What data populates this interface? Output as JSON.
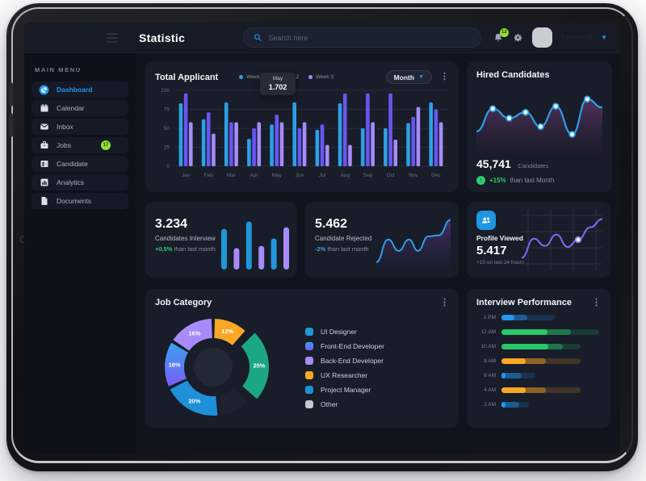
{
  "topbar": {
    "title": "Statistic",
    "search_placeholder": "Search here",
    "notification_count": "12",
    "user_name": "Fandom M"
  },
  "sidebar": {
    "section_label": "MAIN MENU",
    "items": [
      {
        "label": "Dashboard",
        "icon": "dashboard-icon",
        "active": true
      },
      {
        "label": "Calendar",
        "icon": "calendar-icon",
        "active": false
      },
      {
        "label": "Inbox",
        "icon": "inbox-icon",
        "active": false
      },
      {
        "label": "Jobs",
        "icon": "jobs-icon",
        "active": false,
        "badge": "17"
      },
      {
        "label": "Candidate",
        "icon": "candidate-icon",
        "active": false
      },
      {
        "label": "Analytics",
        "icon": "analytics-icon",
        "active": false
      },
      {
        "label": "Documents",
        "icon": "documents-icon",
        "active": false
      }
    ]
  },
  "cards": {
    "total_applicant": {
      "title": "Total Applicant",
      "period": "Month"
    },
    "hired": {
      "title": "Hired Candidates",
      "value": "45,741",
      "unit": "Candidates",
      "delta": "+15%",
      "delta_suffix": "than last Month"
    },
    "interview": {
      "value": "3.234",
      "label": "Candidates Interview",
      "delta": "+0,5%",
      "delta_suffix": "than last month"
    },
    "rejected": {
      "value": "5.462",
      "label": "Candidate Rejected",
      "delta": "-2%",
      "delta_suffix": "than last month"
    },
    "profile": {
      "title": "Profile Viewed",
      "value": "5.417",
      "delta": "+15 on last 24 hours"
    },
    "job_category": {
      "title": "Job Category"
    },
    "interview_performance": {
      "title": "Interview Performance"
    }
  },
  "colors": {
    "accent": "#2196f3",
    "week1": "#2e9fe6",
    "week2": "#6757f2",
    "week3": "#a78bfa",
    "green": "#2ecc71",
    "lime_badge": "#93e232",
    "orange": "#f9a825",
    "teal": "#1ba784",
    "purple_line": "#7c6cf5",
    "card_bg": "#181d29",
    "screen_bg": "#10141d"
  },
  "chart_data": [
    {
      "id": "total-applicant",
      "type": "bar",
      "title": "Total Applicant",
      "categories": [
        "Jan",
        "Feb",
        "Mar",
        "Apr",
        "May",
        "Jun",
        "Jul",
        "Aug",
        "Sep",
        "Oct",
        "Nov",
        "Dec"
      ],
      "series": [
        {
          "name": "Week 1",
          "color": "#2e9fe6",
          "values": [
            83,
            62,
            84,
            36,
            55,
            84,
            48,
            83,
            50,
            50,
            57,
            84
          ]
        },
        {
          "name": "Week 2",
          "color": "#6757f2",
          "values": [
            96,
            71,
            58,
            50,
            68,
            50,
            55,
            96,
            96,
            96,
            65,
            75
          ]
        },
        {
          "name": "Week 3",
          "color": "#a78bfa",
          "values": [
            58,
            43,
            58,
            58,
            58,
            58,
            28,
            28,
            58,
            35,
            78,
            58
          ]
        }
      ],
      "ylim": [
        0,
        100
      ],
      "yticks": [
        0,
        25,
        50,
        75,
        100
      ],
      "grid": true,
      "legend_position": "top",
      "tooltip": {
        "category": "May",
        "value": "1.702"
      }
    },
    {
      "id": "hired-candidates",
      "type": "line",
      "x": [
        0,
        13,
        26,
        39,
        51,
        63,
        76,
        88,
        100
      ],
      "values": [
        30,
        68,
        52,
        62,
        38,
        72,
        25,
        84,
        70
      ],
      "marker_indexes": [
        1,
        2,
        3,
        4,
        5,
        6,
        7
      ],
      "line_color": "#2e9fe6",
      "area": true
    },
    {
      "id": "candidates-interview",
      "type": "bar",
      "values": [
        72,
        38,
        85,
        42,
        55,
        75
      ],
      "colors": [
        "#2196d9",
        "#a78bfa",
        "#2196d9",
        "#a78bfa",
        "#2196d9",
        "#a78bfa"
      ]
    },
    {
      "id": "candidate-rejected",
      "type": "area",
      "x": [
        0,
        16,
        30,
        44,
        56,
        70,
        84,
        100
      ],
      "values": [
        8,
        52,
        30,
        52,
        30,
        58,
        60,
        90
      ],
      "line_color": "#2e9fe6"
    },
    {
      "id": "profile-viewed",
      "type": "line",
      "x": [
        0,
        15,
        29,
        43,
        57,
        70,
        85,
        100
      ],
      "values": [
        15,
        52,
        38,
        60,
        36,
        50,
        74,
        90
      ],
      "marker_indexes": [
        5
      ],
      "line_color": "#7c6cf5",
      "grid": true
    },
    {
      "id": "job-category",
      "type": "pie",
      "segments": [
        {
          "label": "UX Researcher",
          "value": 12,
          "color": "#f9a825",
          "text": "12%",
          "explode": false
        },
        {
          "label": "UI Designer",
          "value": 25,
          "color": "#1ba784",
          "text": "25%",
          "explode": true
        },
        {
          "label": "Other",
          "value": 11,
          "color": "#1d222e",
          "text": "",
          "explode": false
        },
        {
          "label": "Project Manager",
          "value": 20,
          "color": "#1f8fd8",
          "text": "20%",
          "explode": false
        },
        {
          "label": "Front-End Developer",
          "value": 16,
          "color": "gradient",
          "text": "16%",
          "explode": false
        },
        {
          "label": "Back-End Developer",
          "value": 16,
          "color": "#a78bfa",
          "text": "16%",
          "explode": false
        }
      ],
      "legend": [
        {
          "label": "UI Designer",
          "swatch": "#2196d9"
        },
        {
          "label": "Front-End Developer",
          "swatch": "gradient"
        },
        {
          "label": "Back-End Developer",
          "swatch": "#a78bfa"
        },
        {
          "label": "UX Researcher",
          "swatch": "#f9a825"
        },
        {
          "label": "Project Manager",
          "swatch": "#1f8fd8"
        },
        {
          "label": "Other",
          "swatch": "#c4c8cf"
        }
      ]
    },
    {
      "id": "interview-performance",
      "type": "bar-horizontal",
      "rows": [
        {
          "label": "1 PM",
          "color": "#2196f3",
          "bright": 13,
          "mid": 26,
          "track": 54
        },
        {
          "label": "12 AM",
          "color": "#27c968",
          "bright": 46,
          "mid": 70,
          "track": 98
        },
        {
          "label": "10 AM",
          "color": "#27c968",
          "bright": 47,
          "mid": 62,
          "track": 80
        },
        {
          "label": "8 AM",
          "color": "#f9a825",
          "bright": 24,
          "mid": 45,
          "track": 80
        },
        {
          "label": "6 AM",
          "color": "#2196f3",
          "bright": 4,
          "mid": 20,
          "track": 34
        },
        {
          "label": "4 AM",
          "color": "#f9a825",
          "bright": 24,
          "mid": 45,
          "track": 80
        },
        {
          "label": "2 AM",
          "color": "#2196f3",
          "bright": 4,
          "mid": 18,
          "track": 28
        }
      ]
    }
  ]
}
